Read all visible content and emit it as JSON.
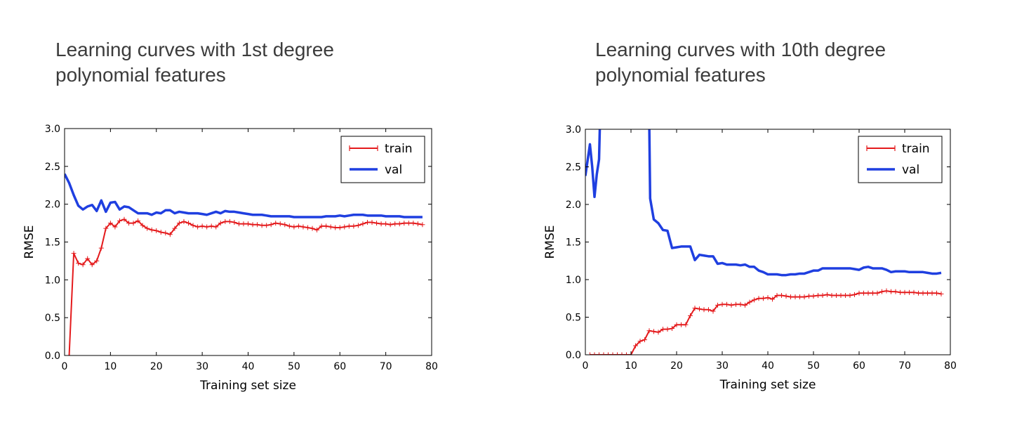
{
  "panels": [
    {
      "title_line1": "Learning curves with 1st degree",
      "title_line2": "polynomial features"
    },
    {
      "title_line1": "Learning curves with 10th degree",
      "title_line2": "polynomial features"
    }
  ],
  "chart_data": [
    {
      "type": "line",
      "title": "Learning curves with 1st degree polynomial features",
      "xlabel": "Training set size",
      "ylabel": "RMSE",
      "xlim": [
        0,
        80
      ],
      "ylim": [
        0,
        3
      ],
      "xticks": [
        0,
        10,
        20,
        30,
        40,
        50,
        60,
        70,
        80
      ],
      "yticks": [
        "0.0",
        "0.5",
        "1.0",
        "1.5",
        "2.0",
        "2.5",
        "3.0"
      ],
      "legend_position": "top-right",
      "series": [
        {
          "name": "train",
          "color": "#e41a1c",
          "marker": "+",
          "x": [
            1,
            2,
            3,
            4,
            5,
            6,
            7,
            8,
            9,
            10,
            11,
            12,
            13,
            14,
            15,
            16,
            17,
            18,
            19,
            20,
            21,
            22,
            23,
            24,
            25,
            26,
            27,
            28,
            29,
            30,
            31,
            32,
            33,
            34,
            35,
            36,
            37,
            38,
            39,
            40,
            41,
            42,
            43,
            44,
            45,
            46,
            47,
            48,
            49,
            50,
            51,
            52,
            53,
            54,
            55,
            56,
            57,
            58,
            59,
            60,
            61,
            62,
            63,
            64,
            65,
            66,
            67,
            68,
            69,
            70,
            71,
            72,
            73,
            74,
            75,
            76,
            77,
            78
          ],
          "y": [
            0.0,
            1.35,
            1.22,
            1.2,
            1.28,
            1.2,
            1.25,
            1.42,
            1.68,
            1.75,
            1.7,
            1.78,
            1.8,
            1.75,
            1.75,
            1.78,
            1.72,
            1.68,
            1.66,
            1.65,
            1.63,
            1.62,
            1.6,
            1.68,
            1.75,
            1.77,
            1.75,
            1.72,
            1.7,
            1.71,
            1.7,
            1.71,
            1.7,
            1.75,
            1.77,
            1.77,
            1.76,
            1.74,
            1.74,
            1.74,
            1.73,
            1.73,
            1.72,
            1.72,
            1.73,
            1.75,
            1.74,
            1.73,
            1.71,
            1.7,
            1.71,
            1.7,
            1.69,
            1.68,
            1.66,
            1.71,
            1.71,
            1.7,
            1.69,
            1.69,
            1.7,
            1.71,
            1.71,
            1.72,
            1.74,
            1.76,
            1.76,
            1.75,
            1.74,
            1.74,
            1.73,
            1.74,
            1.74,
            1.75,
            1.75,
            1.75,
            1.74,
            1.73
          ]
        },
        {
          "name": "val",
          "color": "#1f3fe0",
          "marker": "",
          "x": [
            0,
            1,
            2,
            3,
            4,
            5,
            6,
            7,
            8,
            9,
            10,
            11,
            12,
            13,
            14,
            15,
            16,
            17,
            18,
            19,
            20,
            21,
            22,
            23,
            24,
            25,
            26,
            27,
            28,
            29,
            30,
            31,
            32,
            33,
            34,
            35,
            36,
            37,
            38,
            39,
            40,
            41,
            42,
            43,
            44,
            45,
            46,
            47,
            48,
            49,
            50,
            51,
            52,
            53,
            54,
            55,
            56,
            57,
            58,
            59,
            60,
            61,
            62,
            63,
            64,
            65,
            66,
            67,
            68,
            69,
            70,
            71,
            72,
            73,
            74,
            75,
            76,
            77,
            78
          ],
          "y": [
            2.4,
            2.28,
            2.12,
            1.98,
            1.93,
            1.97,
            1.99,
            1.91,
            2.05,
            1.9,
            2.02,
            2.03,
            1.93,
            1.97,
            1.96,
            1.92,
            1.88,
            1.88,
            1.88,
            1.86,
            1.89,
            1.88,
            1.92,
            1.92,
            1.88,
            1.9,
            1.89,
            1.88,
            1.88,
            1.88,
            1.87,
            1.86,
            1.88,
            1.9,
            1.88,
            1.91,
            1.9,
            1.9,
            1.89,
            1.88,
            1.87,
            1.86,
            1.86,
            1.86,
            1.85,
            1.84,
            1.84,
            1.84,
            1.84,
            1.84,
            1.83,
            1.83,
            1.83,
            1.83,
            1.83,
            1.83,
            1.83,
            1.84,
            1.84,
            1.84,
            1.85,
            1.84,
            1.85,
            1.86,
            1.86,
            1.86,
            1.85,
            1.85,
            1.85,
            1.85,
            1.84,
            1.84,
            1.84,
            1.84,
            1.83,
            1.83,
            1.83,
            1.83,
            1.83
          ]
        }
      ]
    },
    {
      "type": "line",
      "title": "Learning curves with 10th degree polynomial features",
      "xlabel": "Training set size",
      "ylabel": "RMSE",
      "xlim": [
        0,
        80
      ],
      "ylim": [
        0,
        3
      ],
      "xticks": [
        0,
        10,
        20,
        30,
        40,
        50,
        60,
        70,
        80
      ],
      "yticks": [
        "0.0",
        "0.5",
        "1.0",
        "1.5",
        "2.0",
        "2.5",
        "3.0"
      ],
      "legend_position": "top-right",
      "series": [
        {
          "name": "train",
          "color": "#e41a1c",
          "marker": "+",
          "x": [
            1,
            2,
            3,
            4,
            5,
            6,
            7,
            8,
            9,
            10,
            11,
            12,
            13,
            14,
            15,
            16,
            17,
            18,
            19,
            20,
            21,
            22,
            23,
            24,
            25,
            26,
            27,
            28,
            29,
            30,
            31,
            32,
            33,
            34,
            35,
            36,
            37,
            38,
            39,
            40,
            41,
            42,
            43,
            44,
            45,
            46,
            47,
            48,
            49,
            50,
            51,
            52,
            53,
            54,
            55,
            56,
            57,
            58,
            59,
            60,
            61,
            62,
            63,
            64,
            65,
            66,
            67,
            68,
            69,
            70,
            71,
            72,
            73,
            74,
            75,
            76,
            77,
            78
          ],
          "y": [
            0.0,
            0.0,
            0.0,
            0.0,
            0.0,
            0.0,
            0.0,
            0.0,
            0.0,
            0.0,
            0.12,
            0.18,
            0.2,
            0.32,
            0.31,
            0.3,
            0.34,
            0.34,
            0.35,
            0.4,
            0.4,
            0.4,
            0.52,
            0.62,
            0.61,
            0.6,
            0.6,
            0.58,
            0.66,
            0.67,
            0.67,
            0.66,
            0.67,
            0.67,
            0.66,
            0.7,
            0.73,
            0.75,
            0.75,
            0.76,
            0.74,
            0.79,
            0.79,
            0.78,
            0.77,
            0.77,
            0.77,
            0.77,
            0.78,
            0.78,
            0.79,
            0.79,
            0.8,
            0.79,
            0.79,
            0.79,
            0.79,
            0.79,
            0.8,
            0.82,
            0.82,
            0.82,
            0.82,
            0.82,
            0.84,
            0.85,
            0.84,
            0.84,
            0.83,
            0.83,
            0.83,
            0.83,
            0.82,
            0.82,
            0.82,
            0.82,
            0.82,
            0.81
          ]
        },
        {
          "name": "val",
          "color": "#1f3fe0",
          "marker": "",
          "x": [
            0,
            1,
            1.5,
            2,
            2.5,
            3,
            3.2,
            14,
            14.2,
            15,
            16,
            17,
            18,
            19,
            20,
            21,
            22,
            23,
            24,
            25,
            26,
            27,
            28,
            29,
            30,
            31,
            32,
            33,
            34,
            35,
            36,
            37,
            38,
            39,
            40,
            41,
            42,
            43,
            44,
            45,
            46,
            47,
            48,
            49,
            50,
            51,
            52,
            53,
            54,
            55,
            56,
            57,
            58,
            59,
            60,
            61,
            62,
            63,
            64,
            65,
            66,
            67,
            68,
            69,
            70,
            71,
            72,
            73,
            74,
            75,
            76,
            77,
            78
          ],
          "y": [
            2.38,
            2.8,
            2.5,
            2.1,
            2.4,
            2.6,
            3.1,
            3.1,
            2.08,
            1.8,
            1.75,
            1.66,
            1.65,
            1.42,
            1.43,
            1.44,
            1.44,
            1.44,
            1.26,
            1.33,
            1.32,
            1.31,
            1.31,
            1.21,
            1.22,
            1.2,
            1.2,
            1.2,
            1.19,
            1.2,
            1.17,
            1.17,
            1.12,
            1.1,
            1.07,
            1.07,
            1.07,
            1.06,
            1.06,
            1.07,
            1.07,
            1.08,
            1.08,
            1.1,
            1.12,
            1.12,
            1.15,
            1.15,
            1.15,
            1.15,
            1.15,
            1.15,
            1.15,
            1.14,
            1.13,
            1.16,
            1.17,
            1.15,
            1.15,
            1.15,
            1.13,
            1.1,
            1.11,
            1.11,
            1.11,
            1.1,
            1.1,
            1.1,
            1.1,
            1.09,
            1.08,
            1.08,
            1.09
          ]
        }
      ]
    }
  ]
}
